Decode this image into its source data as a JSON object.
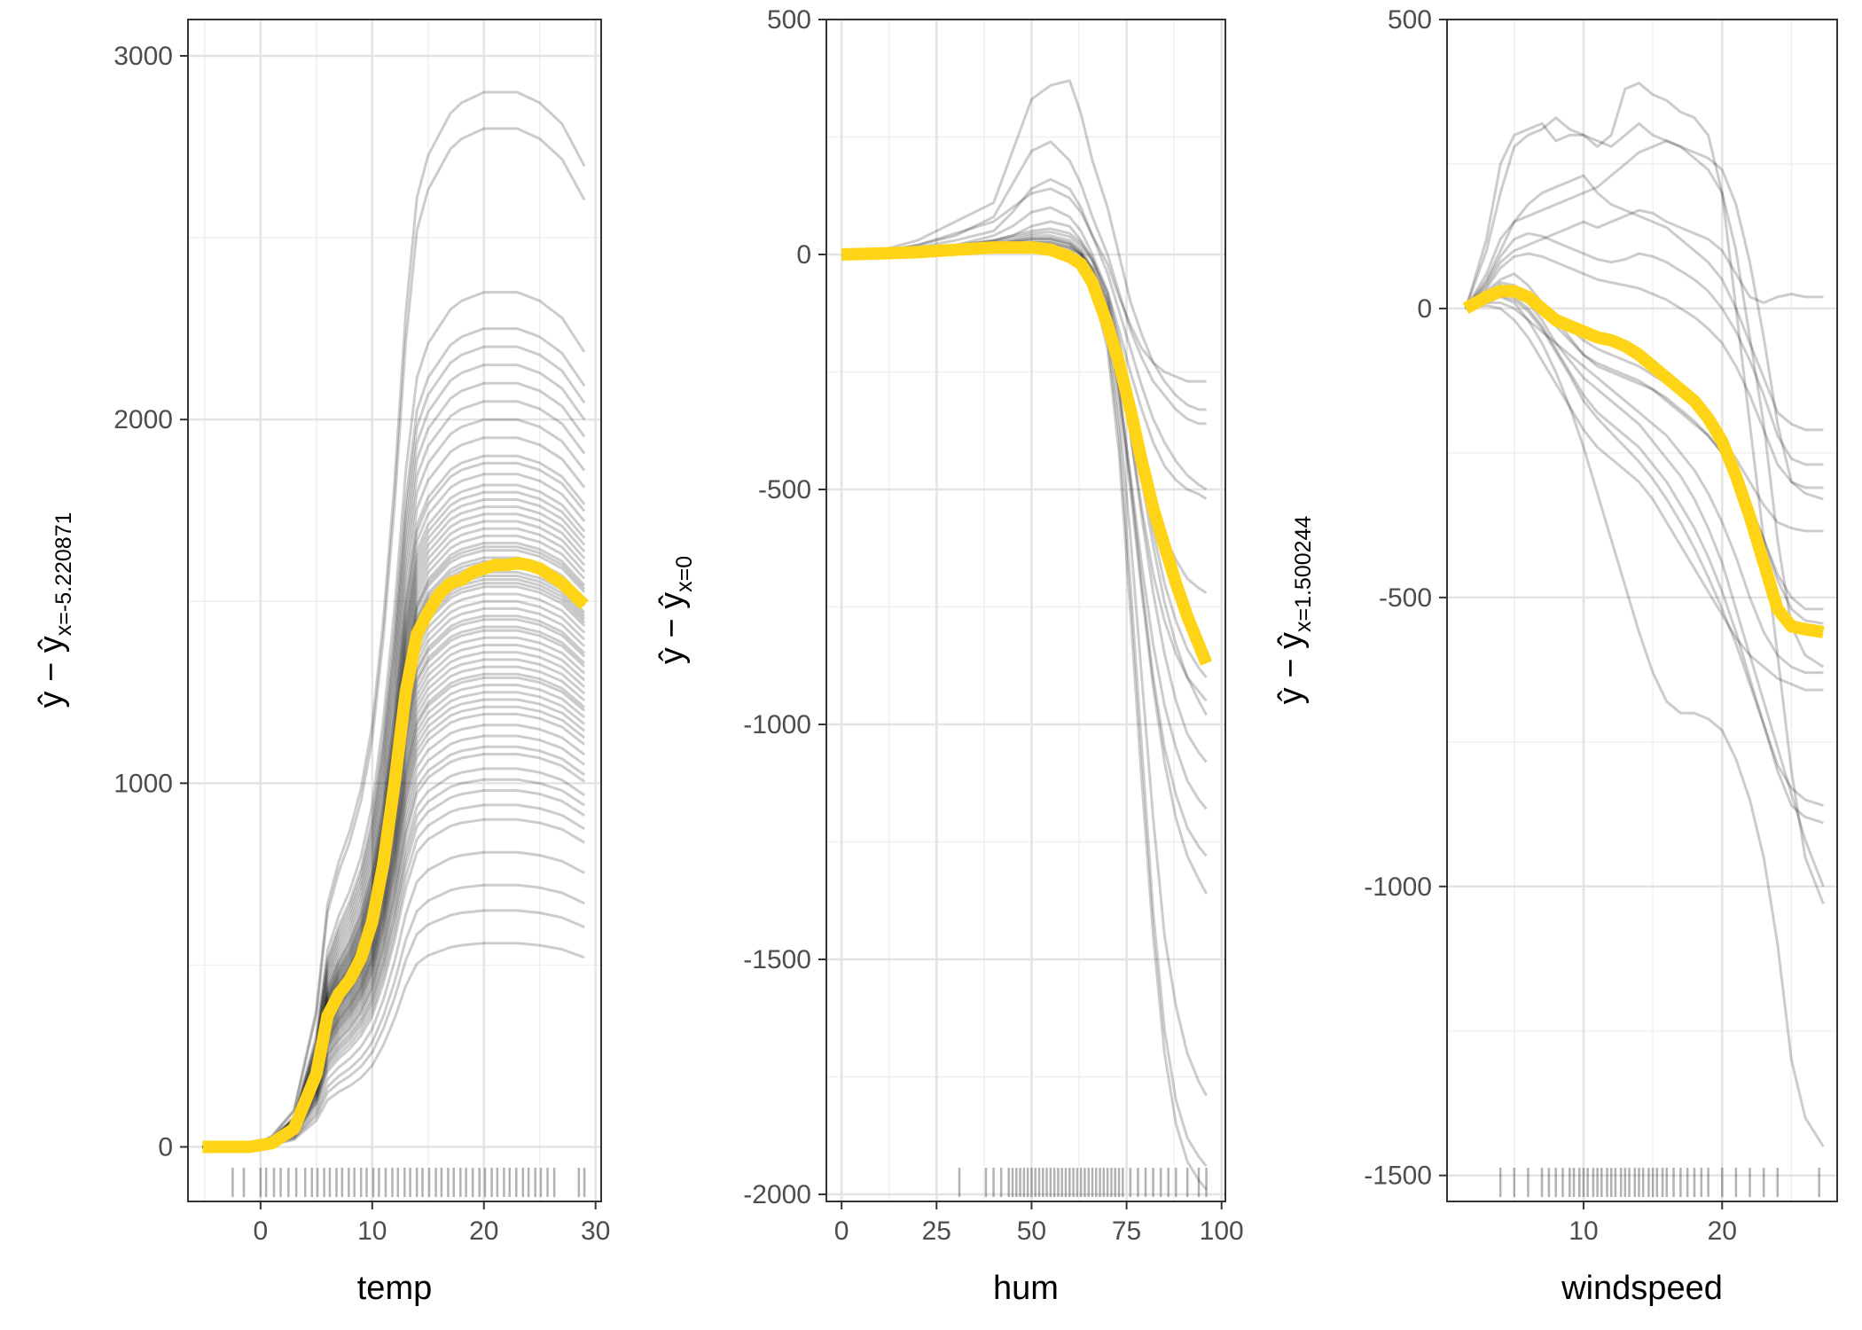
{
  "colors": {
    "background": "#ffffff",
    "panel_border": "#333333",
    "grid_major": "#e3e3e3",
    "grid_minor": "#f0f0f0",
    "ice_line": "#000000",
    "pdp_line": "#FFD416",
    "rug": "#000000",
    "tick_text": "#4d4d4d"
  },
  "chart_data": [
    {
      "type": "line",
      "subtype": "centered-ice",
      "xlabel": "temp",
      "ylabel_main": "ŷ − ŷ",
      "ylabel_sub": "x=-5.220871",
      "xlim": [
        -6.5,
        30.5
      ],
      "ylim": [
        -150,
        3100
      ],
      "x_ticks": [
        0,
        10,
        20,
        30
      ],
      "x_tick_labels": [
        "0",
        "10",
        "20",
        "30"
      ],
      "y_ticks": [
        0,
        1000,
        2000,
        3000
      ],
      "y_tick_labels": [
        "0",
        "1000",
        "2000",
        "3000"
      ],
      "x": [
        -5.2,
        -3,
        -1,
        1,
        3,
        5,
        6,
        7,
        8,
        9,
        10,
        11,
        12,
        13,
        14,
        15,
        16,
        17,
        18,
        19,
        20,
        21,
        22,
        23,
        24,
        25,
        26,
        27,
        28,
        29
      ],
      "pdp": [
        0,
        0,
        0,
        10,
        50,
        200,
        360,
        420,
        460,
        520,
        620,
        780,
        1000,
        1250,
        1410,
        1470,
        1520,
        1550,
        1560,
        1580,
        1590,
        1600,
        1600,
        1605,
        1600,
        1590,
        1570,
        1550,
        1520,
        1490
      ],
      "ice_shape": [
        0,
        0,
        0,
        0.01,
        0.035,
        0.13,
        0.23,
        0.27,
        0.3,
        0.34,
        0.4,
        0.5,
        0.63,
        0.79,
        0.9,
        0.94,
        0.96,
        0.98,
        0.99,
        0.995,
        1,
        1,
        1,
        1,
        0.995,
        0.99,
        0.98,
        0.97,
        0.95,
        0.93
      ],
      "ice_plateaus": [
        560,
        650,
        720,
        810,
        900,
        940,
        980,
        1010,
        1040,
        1080,
        1100,
        1130,
        1160,
        1190,
        1210,
        1230,
        1250,
        1270,
        1290,
        1300,
        1320,
        1340,
        1360,
        1380,
        1400,
        1420,
        1430,
        1450,
        1460,
        1480,
        1500,
        1520,
        1540,
        1550,
        1560,
        1570,
        1580,
        1600,
        1610,
        1620,
        1640,
        1650,
        1660,
        1680,
        1700,
        1720,
        1740,
        1760,
        1780,
        1800,
        1820,
        1850,
        1880,
        1900,
        1950,
        2000,
        2050,
        2100,
        2150,
        2200,
        2250,
        2350,
        2800,
        2900
      ],
      "rug": [
        -2.5,
        -1.5,
        0,
        0.5,
        1.2,
        1.8,
        2.5,
        3.2,
        4,
        4.6,
        5.1,
        5.7,
        6.2,
        6.8,
        7.3,
        7.9,
        8.4,
        9,
        9.5,
        10.1,
        10.6,
        11.2,
        11.8,
        12.3,
        12.9,
        13.4,
        14,
        14.5,
        15.1,
        15.7,
        16.2,
        16.8,
        17.3,
        17.9,
        18.4,
        19,
        19.6,
        20.1,
        20.7,
        21.2,
        21.8,
        22.3,
        22.9,
        23.5,
        24,
        24.6,
        25.1,
        25.7,
        26.3,
        28.5,
        29
      ]
    },
    {
      "type": "line",
      "subtype": "centered-ice",
      "xlabel": "hum",
      "ylabel_main": "ŷ − ŷ",
      "ylabel_sub": "x=0",
      "xlim": [
        -4,
        101
      ],
      "ylim": [
        -2015,
        500
      ],
      "x_ticks": [
        0,
        25,
        50,
        75,
        100
      ],
      "x_tick_labels": [
        "0",
        "25",
        "50",
        "75",
        "100"
      ],
      "y_ticks": [
        -2000,
        -1500,
        -1000,
        -500,
        0,
        500
      ],
      "y_tick_labels": [
        "-2000",
        "-1500",
        "-1000",
        "-500",
        "0",
        "500"
      ],
      "x": [
        0,
        10,
        20,
        30,
        40,
        45,
        50,
        55,
        60,
        63,
        66,
        70,
        73,
        76,
        79,
        82,
        85,
        88,
        91,
        94,
        96
      ],
      "pdp": [
        0,
        2,
        5,
        10,
        15,
        15,
        15,
        10,
        -5,
        -20,
        -60,
        -150,
        -230,
        -330,
        -440,
        -540,
        -620,
        -700,
        -770,
        -830,
        -870
      ],
      "ice_curves": [
        [
          0,
          8,
          30,
          70,
          110,
          220,
          330,
          360,
          370,
          300,
          200,
          100,
          0,
          -100,
          -170,
          -230,
          -270,
          -300,
          -320,
          -330,
          -330
        ],
        [
          0,
          5,
          20,
          40,
          80,
          150,
          220,
          240,
          200,
          150,
          80,
          0,
          -80,
          -160,
          -220,
          -270,
          -300,
          -330,
          -350,
          -360,
          -360
        ],
        [
          0,
          4,
          15,
          30,
          50,
          90,
          140,
          160,
          140,
          100,
          40,
          -40,
          -120,
          -200,
          -280,
          -350,
          -400,
          -440,
          -470,
          -490,
          -500
        ],
        [
          0,
          3,
          10,
          20,
          40,
          60,
          90,
          100,
          80,
          50,
          0,
          -80,
          -180,
          -300,
          -420,
          -520,
          -600,
          -650,
          -690,
          -710,
          -720
        ],
        [
          0,
          3,
          10,
          20,
          30,
          40,
          60,
          70,
          60,
          30,
          -10,
          -100,
          -220,
          -380,
          -560,
          -720,
          -850,
          -950,
          -1020,
          -1060,
          -1080
        ],
        [
          0,
          2,
          8,
          15,
          25,
          30,
          40,
          40,
          30,
          10,
          -30,
          -130,
          -280,
          -480,
          -700,
          -900,
          -1050,
          -1150,
          -1220,
          -1260,
          -1280
        ],
        [
          0,
          2,
          6,
          12,
          20,
          25,
          30,
          30,
          20,
          0,
          -50,
          -160,
          -340,
          -600,
          -900,
          -1200,
          -1450,
          -1600,
          -1700,
          -1760,
          -1790
        ],
        [
          0,
          1,
          5,
          10,
          15,
          18,
          20,
          20,
          10,
          -10,
          -60,
          -180,
          -380,
          -700,
          -1050,
          -1400,
          -1650,
          -1800,
          -1880,
          -1920,
          -1940
        ],
        [
          0,
          2,
          6,
          12,
          18,
          20,
          25,
          25,
          15,
          0,
          -40,
          -140,
          -300,
          -500,
          -720,
          -920,
          -1080,
          -1200,
          -1280,
          -1330,
          -1360
        ],
        [
          0,
          3,
          8,
          15,
          22,
          28,
          35,
          35,
          25,
          5,
          -30,
          -110,
          -230,
          -380,
          -540,
          -680,
          -780,
          -850,
          -900,
          -930,
          -950
        ],
        [
          0,
          4,
          10,
          18,
          30,
          40,
          50,
          55,
          45,
          25,
          -10,
          -80,
          -160,
          -250,
          -330,
          -400,
          -450,
          -480,
          -500,
          -510,
          -520
        ],
        [
          0,
          2,
          5,
          10,
          15,
          20,
          25,
          25,
          15,
          0,
          -30,
          -100,
          -200,
          -330,
          -480,
          -620,
          -740,
          -830,
          -900,
          -950,
          -980
        ],
        [
          0,
          6,
          20,
          45,
          70,
          100,
          130,
          140,
          120,
          90,
          40,
          -20,
          -90,
          -150,
          -200,
          -230,
          -250,
          -260,
          -270,
          -270,
          -270
        ],
        [
          0,
          1,
          4,
          8,
          12,
          15,
          18,
          15,
          5,
          -15,
          -70,
          -200,
          -420,
          -760,
          -1120,
          -1450,
          -1700,
          -1850,
          -1930,
          -1970,
          -1990
        ],
        [
          0,
          3,
          9,
          18,
          28,
          35,
          45,
          48,
          38,
          18,
          -15,
          -90,
          -190,
          -320,
          -460,
          -590,
          -700,
          -780,
          -840,
          -880,
          -900
        ],
        [
          0,
          2,
          7,
          14,
          22,
          27,
          33,
          33,
          23,
          3,
          -40,
          -140,
          -290,
          -470,
          -660,
          -830,
          -960,
          -1050,
          -1120,
          -1160,
          -1180
        ]
      ],
      "rug": [
        31,
        38,
        40,
        42,
        44,
        45,
        46,
        47,
        48,
        49,
        50,
        51,
        52,
        53,
        54,
        55,
        56,
        57,
        58,
        59,
        60,
        61,
        62,
        63,
        64,
        65,
        66,
        67,
        68,
        69,
        70,
        71,
        72,
        73,
        74,
        76,
        78,
        80,
        82,
        84,
        86,
        88,
        91,
        94,
        96
      ]
    },
    {
      "type": "line",
      "subtype": "centered-ice",
      "xlabel": "windspeed",
      "ylabel_main": "ŷ − ŷ",
      "ylabel_sub": "x=1.500244",
      "xlim": [
        0.15,
        28.3
      ],
      "ylim": [
        -1545,
        500
      ],
      "x_ticks": [
        10,
        20
      ],
      "x_tick_labels": [
        "10",
        "20"
      ],
      "y_ticks": [
        -1500,
        -1000,
        -500,
        0,
        500
      ],
      "y_tick_labels": [
        "-1500",
        "-1000",
        "-500",
        "0",
        "500"
      ],
      "x": [
        1.5,
        3,
        4,
        5,
        6,
        7,
        8,
        9,
        10,
        11,
        12,
        13,
        14,
        15,
        16,
        17,
        18,
        19,
        20,
        21,
        22,
        23,
        24,
        25,
        26,
        27.3
      ],
      "pdp": [
        0,
        20,
        30,
        30,
        20,
        0,
        -20,
        -30,
        -40,
        -50,
        -55,
        -65,
        -80,
        -100,
        -120,
        -140,
        -160,
        -190,
        -230,
        -290,
        -360,
        -440,
        -520,
        -550,
        -555,
        -560
      ],
      "ice_curves": [
        [
          0,
          120,
          250,
          300,
          310,
          320,
          290,
          300,
          300,
          280,
          300,
          380,
          390,
          370,
          360,
          340,
          330,
          300,
          200,
          0,
          -200,
          -400,
          -600,
          -800,
          -950,
          -1030
        ],
        [
          0,
          100,
          200,
          280,
          300,
          310,
          330,
          310,
          300,
          290,
          280,
          300,
          320,
          300,
          290,
          280,
          260,
          240,
          200,
          100,
          -50,
          -200,
          -400,
          -550,
          -600,
          -620
        ],
        [
          0,
          60,
          120,
          150,
          160,
          170,
          180,
          190,
          200,
          210,
          230,
          250,
          270,
          280,
          290,
          280,
          270,
          260,
          240,
          180,
          80,
          -50,
          -200,
          -300,
          -320,
          -330
        ],
        [
          0,
          40,
          80,
          100,
          110,
          120,
          130,
          140,
          150,
          140,
          150,
          160,
          170,
          165,
          150,
          140,
          130,
          120,
          100,
          60,
          20,
          10,
          20,
          25,
          20,
          20
        ],
        [
          0,
          20,
          40,
          30,
          10,
          -20,
          -60,
          -90,
          -120,
          -140,
          -160,
          -180,
          -200,
          -230,
          -260,
          -290,
          -330,
          -380,
          -440,
          -520,
          -600,
          -680,
          -760,
          -840,
          -920,
          -1000
        ],
        [
          0,
          10,
          20,
          10,
          -20,
          -60,
          -110,
          -170,
          -240,
          -320,
          -400,
          -480,
          -560,
          -630,
          -680,
          -700,
          -700,
          -710,
          -730,
          -780,
          -850,
          -950,
          -1100,
          -1300,
          -1400,
          -1450
        ],
        [
          0,
          30,
          50,
          60,
          40,
          10,
          -20,
          -50,
          -80,
          -100,
          -110,
          -120,
          -130,
          -140,
          -160,
          -180,
          -200,
          -220,
          -250,
          -290,
          -340,
          -400,
          -460,
          -500,
          -520,
          -520
        ],
        [
          0,
          15,
          30,
          20,
          0,
          -30,
          -70,
          -110,
          -150,
          -180,
          -200,
          -220,
          -240,
          -270,
          -300,
          -340,
          -380,
          -430,
          -490,
          -560,
          -640,
          -720,
          -800,
          -860,
          -880,
          -890
        ],
        [
          0,
          50,
          100,
          150,
          180,
          200,
          210,
          220,
          230,
          200,
          180,
          170,
          160,
          150,
          140,
          120,
          100,
          80,
          50,
          0,
          -60,
          -120,
          -180,
          -200,
          -210,
          -210
        ],
        [
          0,
          10,
          10,
          0,
          -20,
          -40,
          -60,
          -80,
          -100,
          -120,
          -140,
          -160,
          -180,
          -200,
          -220,
          -250,
          -280,
          -320,
          -370,
          -430,
          -500,
          -560,
          -600,
          -620,
          -630,
          -630
        ],
        [
          0,
          25,
          45,
          40,
          25,
          5,
          -15,
          -35,
          -55,
          -70,
          -80,
          -90,
          -100,
          -115,
          -130,
          -150,
          -170,
          -195,
          -225,
          -260,
          -300,
          -340,
          -370,
          -380,
          -385,
          -385
        ],
        [
          0,
          35,
          70,
          90,
          95,
          90,
          80,
          70,
          60,
          50,
          45,
          40,
          35,
          25,
          15,
          0,
          -15,
          -35,
          -60,
          -100,
          -150,
          -210,
          -270,
          -300,
          -310,
          -310
        ],
        [
          0,
          5,
          0,
          -20,
          -50,
          -90,
          -130,
          -170,
          -210,
          -240,
          -260,
          -280,
          -300,
          -330,
          -370,
          -410,
          -450,
          -490,
          -530,
          -570,
          -600,
          -620,
          -640,
          -650,
          -660,
          -660
        ],
        [
          0,
          20,
          35,
          30,
          15,
          -5,
          -30,
          -55,
          -80,
          -95,
          -105,
          -115,
          -125,
          -140,
          -155,
          -175,
          -195,
          -220,
          -250,
          -290,
          -340,
          -400,
          -470,
          -520,
          -540,
          -545
        ],
        [
          0,
          45,
          90,
          120,
          130,
          125,
          115,
          105,
          95,
          85,
          80,
          85,
          95,
          90,
          80,
          65,
          50,
          30,
          0,
          -40,
          -90,
          -150,
          -220,
          -260,
          -270,
          -270
        ],
        [
          0,
          12,
          22,
          15,
          -5,
          -35,
          -75,
          -115,
          -160,
          -190,
          -215,
          -240,
          -265,
          -295,
          -330,
          -370,
          -415,
          -465,
          -520,
          -580,
          -650,
          -720,
          -790,
          -830,
          -850,
          -860
        ]
      ],
      "rug": [
        4,
        5,
        6,
        7,
        7.5,
        8,
        8.5,
        9,
        9.3,
        9.7,
        10,
        10.3,
        10.7,
        11,
        11.3,
        11.7,
        12,
        12.3,
        12.7,
        13,
        13.3,
        13.7,
        14,
        14.3,
        14.7,
        15,
        15.3,
        15.7,
        16,
        16.5,
        17,
        17.5,
        18,
        18.5,
        19,
        20,
        21,
        22,
        23,
        24,
        27
      ]
    }
  ]
}
